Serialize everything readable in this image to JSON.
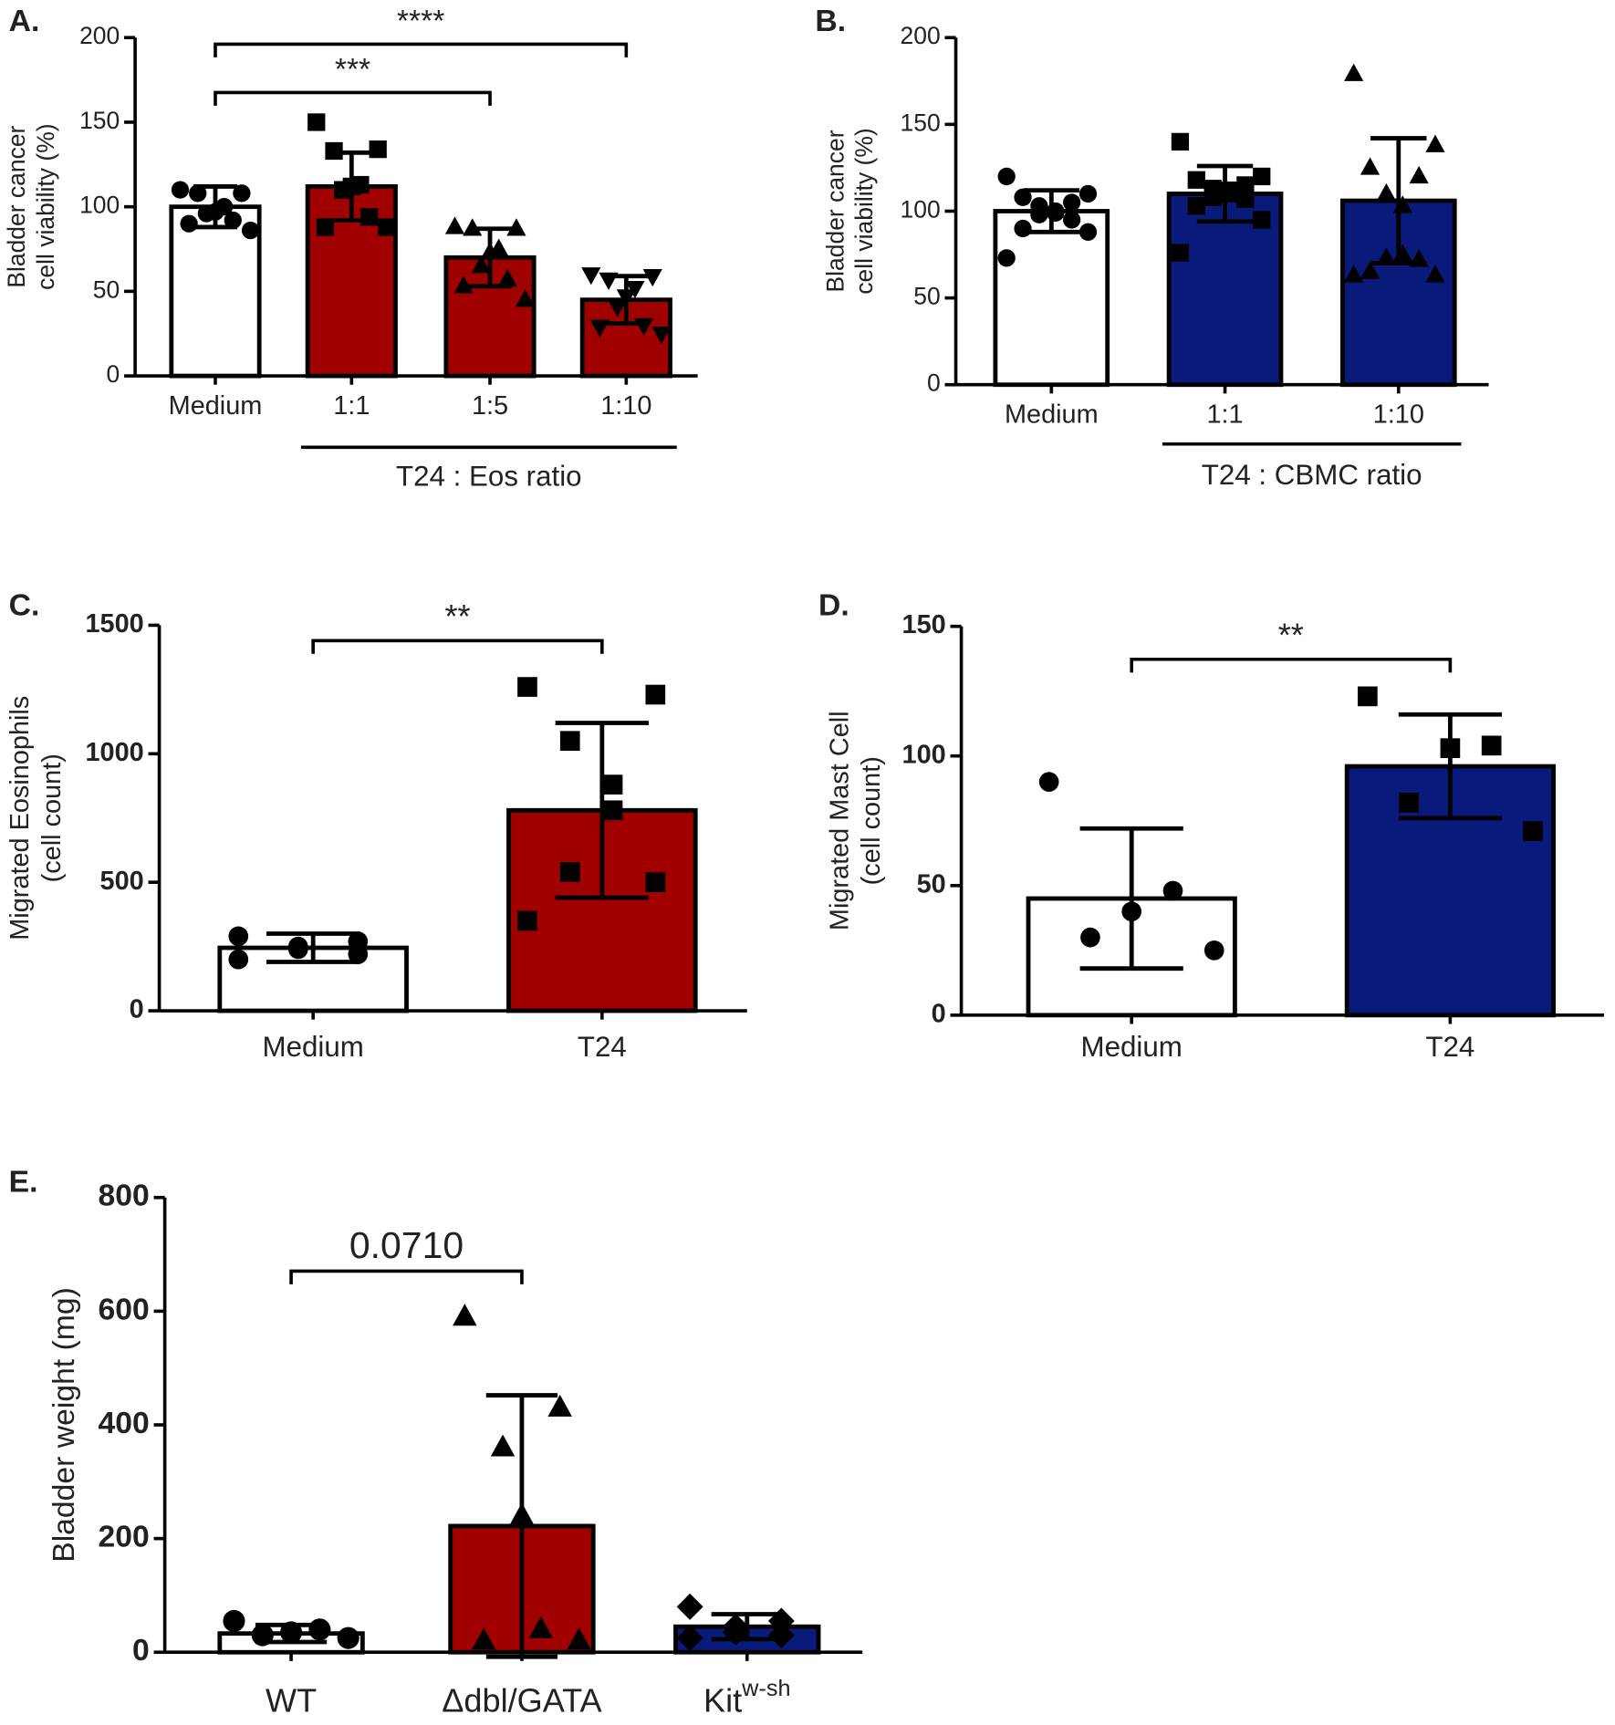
{
  "chart_data": [
    {
      "type": "bar",
      "panel_label": "A.",
      "ylabel": [
        "Bladder cancer",
        "cell viability (%)"
      ],
      "categories": [
        "Medium",
        "1:1",
        "1:5",
        "1:10"
      ],
      "values": [
        100,
        112,
        70,
        45
      ],
      "errors": [
        12,
        20,
        17,
        14
      ],
      "colors": [
        "#ffffff",
        "#a00000",
        "#a00000",
        "#a00000"
      ],
      "markers": [
        "circle",
        "square",
        "triangle",
        "triangle-down"
      ],
      "points": [
        [
          110,
          108,
          108,
          100,
          97,
          96,
          92,
          90,
          86
        ],
        [
          150,
          134,
          133,
          113,
          112,
          110,
          94,
          88,
          88
        ],
        [
          88,
          87,
          87,
          75,
          73,
          65,
          57,
          53,
          45
        ],
        [
          60,
          59,
          57,
          52,
          47,
          41,
          30,
          29,
          25
        ]
      ],
      "ylim": [
        0,
        200
      ],
      "yticks": [
        0,
        50,
        100,
        150,
        200
      ],
      "group_label": "T24 : Eos ratio",
      "group_span": [
        1,
        3
      ],
      "significance": [
        {
          "from": 0,
          "to": 3,
          "label": "****"
        },
        {
          "from": 0,
          "to": 2,
          "label": "***"
        }
      ]
    },
    {
      "type": "bar",
      "panel_label": "B.",
      "ylabel": [
        "Bladder cancer",
        "cell viability (%)"
      ],
      "categories": [
        "Medium",
        "1:1",
        "1:10"
      ],
      "values": [
        100,
        110,
        106
      ],
      "errors": [
        12,
        16,
        36
      ],
      "colors": [
        "#ffffff",
        "#0a1a7a",
        "#0a1a7a"
      ],
      "markers": [
        "circle",
        "square",
        "triangle"
      ],
      "points": [
        [
          120,
          110,
          108,
          105,
          103,
          100,
          99,
          98,
          95,
          90,
          88,
          73
        ],
        [
          140,
          120,
          118,
          115,
          113,
          112,
          110,
          108,
          107,
          103,
          95,
          76
        ],
        [
          179,
          138,
          125,
          120,
          110,
          103,
          75,
          73,
          72,
          65,
          63,
          63
        ]
      ],
      "ylim": [
        0,
        200
      ],
      "yticks": [
        0,
        50,
        100,
        150,
        200
      ],
      "group_label": "T24 : CBMC ratio",
      "group_span": [
        1,
        2
      ]
    },
    {
      "type": "bar",
      "panel_label": "C.",
      "ylabel": [
        "Migrated Eosinophils",
        "(cell count)"
      ],
      "categories": [
        "Medium",
        "T24"
      ],
      "values": [
        245,
        780
      ],
      "errors": [
        55,
        340
      ],
      "colors": [
        "#ffffff",
        "#a00000"
      ],
      "markers": [
        "circle",
        "square"
      ],
      "points": [
        [
          290,
          270,
          250,
          240,
          220,
          200
        ],
        [
          1260,
          1230,
          1050,
          880,
          780,
          540,
          500,
          350
        ]
      ],
      "ylim": [
        0,
        1500
      ],
      "yticks": [
        0,
        500,
        1000,
        1500
      ],
      "significance": [
        {
          "from": 0,
          "to": 1,
          "label": "**"
        }
      ]
    },
    {
      "type": "bar",
      "panel_label": "D.",
      "ylabel": [
        "Migrated Mast Cell",
        "(cell count)"
      ],
      "categories": [
        "Medium",
        "T24"
      ],
      "values": [
        45,
        96
      ],
      "errors": [
        27,
        20
      ],
      "colors": [
        "#ffffff",
        "#0a1a7a"
      ],
      "markers": [
        "circle",
        "square"
      ],
      "points": [
        [
          90,
          48,
          40,
          30,
          25
        ],
        [
          123,
          104,
          103,
          82,
          71
        ]
      ],
      "ylim": [
        0,
        150
      ],
      "yticks": [
        0,
        50,
        100,
        150
      ],
      "significance": [
        {
          "from": 0,
          "to": 1,
          "label": "**"
        }
      ]
    },
    {
      "type": "bar",
      "panel_label": "E.",
      "ylabel": [
        "Bladder weight (mg)"
      ],
      "categories": [
        "WT",
        "Δdbl/GATA",
        "Kit"
      ],
      "category_superscripts": [
        null,
        null,
        "w-sh"
      ],
      "values": [
        33,
        222,
        45
      ],
      "errors": [
        15,
        230,
        22
      ],
      "colors": [
        "#ffffff",
        "#a00000",
        "#0a1a7a"
      ],
      "markers": [
        "circle",
        "triangle",
        "diamond"
      ],
      "points": [
        [
          55,
          40,
          35,
          30,
          25
        ],
        [
          590,
          430,
          360,
          240,
          40,
          20,
          20
        ],
        [
          80,
          55,
          45,
          35,
          30,
          25
        ]
      ],
      "ylim": [
        0,
        800
      ],
      "yticks": [
        0,
        200,
        400,
        600,
        800
      ],
      "significance": [
        {
          "from": 0,
          "to": 1,
          "label": "0.0710"
        }
      ]
    }
  ]
}
